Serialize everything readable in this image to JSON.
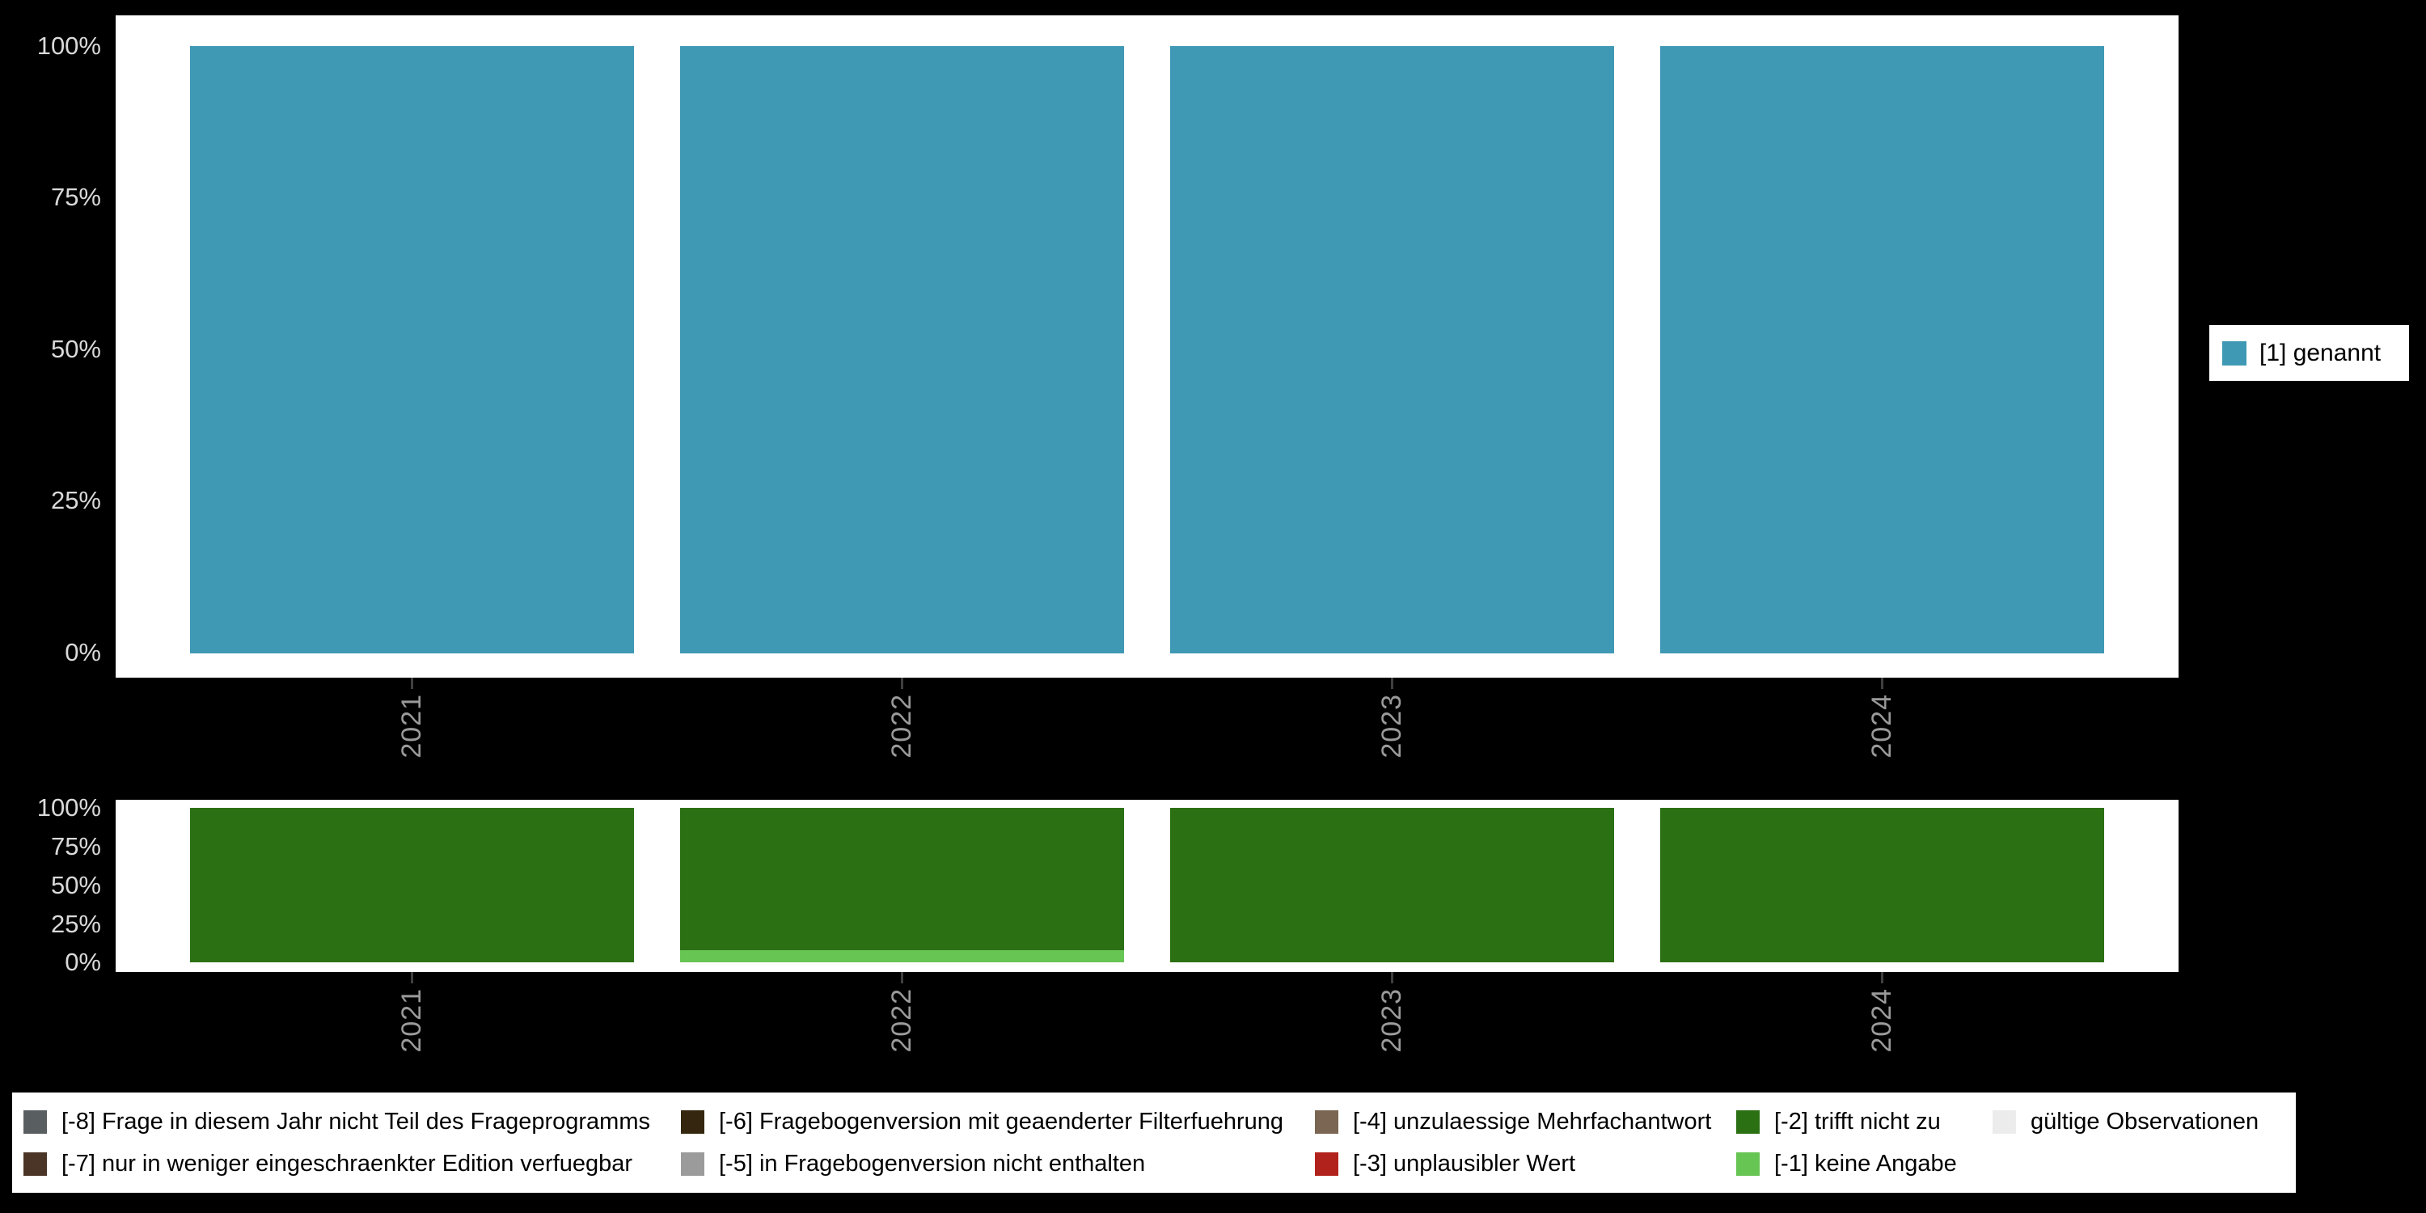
{
  "colors": {
    "background": "#000000",
    "panel": "#ffffff",
    "bar_teal": "#3f99b4",
    "bar_dark_green": "#2c7014",
    "bar_light_green": "#66c553",
    "axis_text": "#d9d9d9",
    "x_axis_text": "#9a9a9a"
  },
  "axis": {
    "y_ticks": [
      "100%",
      "75%",
      "50%",
      "25%",
      "0%"
    ]
  },
  "legend_right": {
    "items": [
      {
        "label": "[1] genannt",
        "color": "#3f99b4"
      }
    ]
  },
  "legend_bottom": {
    "items": [
      {
        "label": "[-8] Frage in diesem Jahr nicht Teil des Frageprogramms",
        "color": "#595e61"
      },
      {
        "label": "[-7] nur in weniger eingeschraenkter Edition verfuegbar",
        "color": "#4a3526"
      },
      {
        "label": "[-6] Fragebogenversion mit geaenderter Filterfuehrung",
        "color": "#35270f"
      },
      {
        "label": "[-5] in Fragebogenversion nicht enthalten",
        "color": "#9b9b9b"
      },
      {
        "label": "[-4] unzulaessige Mehrfachantwort",
        "color": "#7a6652"
      },
      {
        "label": "[-3] unplausibler Wert",
        "color": "#b2221d"
      },
      {
        "label": "[-2] trifft nicht zu",
        "color": "#2c7014"
      },
      {
        "label": "[-1] keine Angabe",
        "color": "#66c553"
      },
      {
        "label": "gültige Observationen",
        "color": "#ececec"
      }
    ]
  },
  "chart_data": [
    {
      "type": "bar",
      "stacked": true,
      "percent": true,
      "title": "",
      "xlabel": "",
      "ylabel": "",
      "ylim": [
        0,
        100
      ],
      "y_tick_labels": [
        "0%",
        "25%",
        "50%",
        "75%",
        "100%"
      ],
      "categories": [
        "2021",
        "2022",
        "2023",
        "2024"
      ],
      "series": [
        {
          "name": "[1] genannt",
          "color": "#3f99b4",
          "values": [
            100,
            100,
            100,
            100
          ]
        }
      ],
      "legend_position": "right",
      "grid": false
    },
    {
      "type": "bar",
      "stacked": true,
      "percent": true,
      "title": "",
      "xlabel": "",
      "ylabel": "",
      "ylim": [
        0,
        100
      ],
      "y_tick_labels": [
        "0%",
        "25%",
        "50%",
        "75%",
        "100%"
      ],
      "categories": [
        "2021",
        "2022",
        "2023",
        "2024"
      ],
      "series": [
        {
          "name": "[-2] trifft nicht zu",
          "color": "#2c7014",
          "values": [
            100,
            92,
            100,
            100
          ]
        },
        {
          "name": "[-1] keine Angabe",
          "color": "#66c553",
          "values": [
            0,
            8,
            0,
            0
          ]
        }
      ],
      "legend_position": "bottom",
      "grid": false
    }
  ]
}
